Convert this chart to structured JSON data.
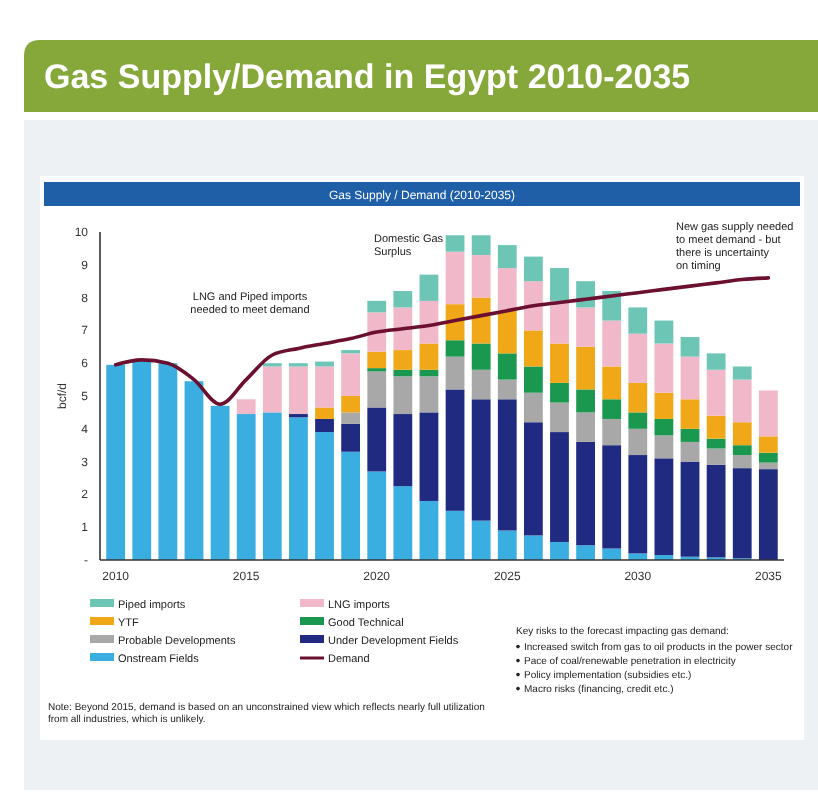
{
  "chart_data": {
    "type": "bar",
    "stacked": true,
    "title": "Gas Supply/Demand in Egypt 2010-2035",
    "subtitle": "Gas Supply / Demand (2010-2035)",
    "ylabel": "bcf/d",
    "x": [
      2010,
      2011,
      2012,
      2013,
      2014,
      2015,
      2016,
      2017,
      2018,
      2019,
      2020,
      2021,
      2022,
      2023,
      2024,
      2025,
      2026,
      2027,
      2028,
      2029,
      2030,
      2031,
      2032,
      2033,
      2034,
      2035
    ],
    "xlim": [
      2009.4,
      2035.6
    ],
    "xticks": [
      2010,
      2015,
      2020,
      2025,
      2030,
      2035
    ],
    "ylim": [
      0,
      10
    ],
    "yticks": [
      {
        "value": 0,
        "label": "-"
      },
      1,
      2,
      3,
      4,
      5,
      6,
      7,
      8,
      9,
      10
    ],
    "legend": "bottom",
    "series": [
      {
        "name": "Onstream Fields",
        "color": "#3aaee0",
        "values": [
          5.95,
          6.1,
          6.0,
          5.45,
          4.7,
          4.45,
          4.5,
          4.35,
          3.9,
          3.3,
          2.7,
          2.25,
          1.8,
          1.5,
          1.2,
          0.9,
          0.75,
          0.55,
          0.45,
          0.35,
          0.2,
          0.15,
          0.1,
          0.08,
          0.05,
          null
        ]
      },
      {
        "name": "Under Development Fields",
        "color": "#1f2a80",
        "values": [
          0,
          0,
          0,
          0,
          0,
          0,
          0,
          0.1,
          0.4,
          0.85,
          1.95,
          2.2,
          2.7,
          3.7,
          3.7,
          4.0,
          3.45,
          3.35,
          3.15,
          3.15,
          3.0,
          2.95,
          2.9,
          2.82,
          2.75,
          2.77
        ]
      },
      {
        "name": "Probable Developments",
        "color": "#a8a8a8",
        "values": [
          0,
          0,
          0,
          0,
          0,
          0,
          0,
          0,
          0,
          0.35,
          1.1,
          1.15,
          1.1,
          1.0,
          0.9,
          0.6,
          0.9,
          0.9,
          0.9,
          0.8,
          0.8,
          0.7,
          0.6,
          0.5,
          0.4,
          0.2
        ]
      },
      {
        "name": "Good Technical",
        "color": "#1a9850",
        "values": [
          0,
          0,
          0,
          0,
          0,
          0,
          0,
          0,
          0,
          0,
          0.1,
          0.2,
          0.2,
          0.5,
          0.8,
          0.8,
          0.8,
          0.6,
          0.7,
          0.6,
          0.5,
          0.5,
          0.4,
          0.3,
          0.3,
          0.3
        ]
      },
      {
        "name": "YTF",
        "color": "#f0a818",
        "values": [
          0,
          0,
          0,
          0,
          0,
          0,
          0,
          0,
          0.35,
          0.5,
          0.5,
          0.6,
          0.8,
          1.1,
          1.4,
          1.3,
          1.1,
          1.2,
          1.3,
          1.0,
          0.9,
          0.8,
          0.9,
          0.7,
          0.7,
          0.5
        ]
      },
      {
        "name": "LNG imports",
        "color": "#f0b8c8",
        "values": [
          0,
          0,
          0,
          0,
          0,
          0.45,
          1.4,
          1.45,
          1.25,
          1.3,
          1.2,
          1.3,
          1.3,
          1.6,
          1.3,
          1.3,
          1.5,
          1.3,
          1.2,
          1.4,
          1.5,
          1.5,
          1.3,
          1.4,
          1.3,
          1.4
        ]
      },
      {
        "name": "Piped imports",
        "color": "#6cc5b5",
        "values": [
          0,
          0,
          0,
          0,
          0,
          0,
          0.1,
          0.1,
          0.15,
          0.1,
          0.35,
          0.5,
          0.8,
          0.5,
          0.6,
          0.7,
          0.75,
          1.0,
          0.8,
          0.9,
          0.8,
          0.7,
          0.6,
          0.5,
          0.4,
          0
        ]
      },
      {
        "name": "Demand",
        "type": "line",
        "color": "#6b1030",
        "values": [
          5.95,
          6.1,
          6.0,
          5.5,
          4.75,
          5.5,
          6.25,
          6.45,
          6.6,
          6.75,
          6.95,
          7.05,
          7.15,
          7.3,
          7.45,
          7.6,
          7.75,
          7.85,
          7.95,
          8.05,
          8.15,
          8.25,
          8.35,
          8.45,
          8.55,
          8.6
        ]
      }
    ],
    "annotations": [
      "LNG and Piped imports needed to meet demand",
      "Domestic Gas Surplus",
      "New gas supply needed to meet demand - but there is uncertainty on timing",
      "Key risks to the forecast impacting gas demand:",
      "Increased switch from gas to oil products in the power sector",
      "Pace of coal/renewable penetration in electricity",
      "Policy implementation (subsidies etc.)",
      "Macro risks (financing, credit etc.)",
      "Note: Beyond 2015, demand is based on an unconstrained view which reflects nearly full utilization from all industries, which is unlikely."
    ]
  }
}
